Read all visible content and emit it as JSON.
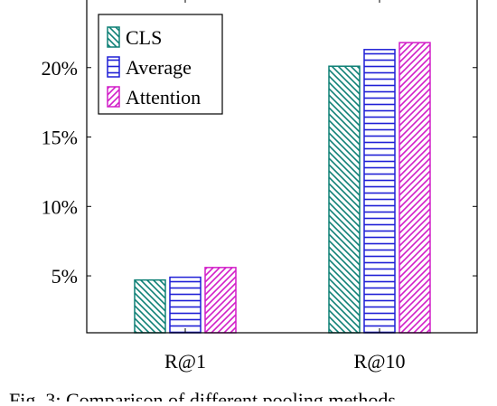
{
  "chart_data": {
    "type": "bar",
    "categories": [
      "R@1",
      "R@10"
    ],
    "series": [
      {
        "name": "CLS",
        "values": [
          4.7,
          20.1
        ],
        "color": "#0f8076",
        "pattern": "diagonal-down"
      },
      {
        "name": "Average",
        "values": [
          4.9,
          21.3
        ],
        "color": "#1f1fd6",
        "pattern": "horizontal"
      },
      {
        "name": "Attention",
        "values": [
          5.6,
          21.8
        ],
        "color": "#d21ec8",
        "pattern": "diagonal-up"
      }
    ],
    "ylim": [
      0.9,
      25.0
    ],
    "yticks": [
      5,
      10,
      15,
      20
    ],
    "ytick_labels": [
      "5%",
      "10%",
      "15%",
      "20%"
    ],
    "legend_position": "top-left",
    "grid": false,
    "title": "",
    "xlabel": "",
    "ylabel": ""
  },
  "caption": "Fig. 3: Comparison of different pooling methods"
}
